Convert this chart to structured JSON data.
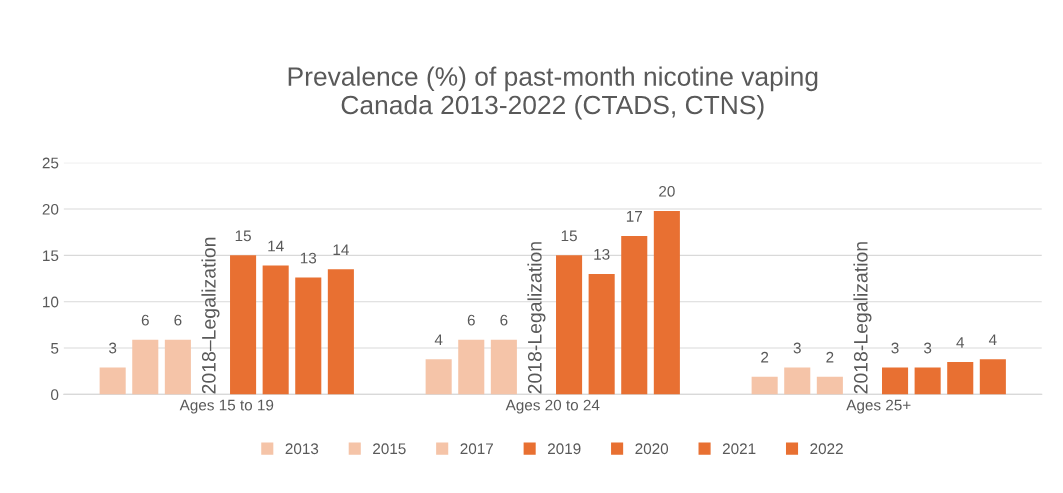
{
  "chart_data": {
    "type": "bar",
    "title": "Prevalence (%) of past-month nicotine vaping\nCanada 2013-2022 (CTADS, CTNS)",
    "categories": [
      "Ages 15 to 19",
      "Ages 20 to 24",
      "Ages 25+"
    ],
    "series": [
      {
        "name": "2013",
        "color": "#f5c4a8",
        "values": [
          2.9,
          3.8,
          1.9
        ],
        "value_labels": [
          "3",
          "4",
          "2"
        ]
      },
      {
        "name": "2015",
        "color": "#f5c4a8",
        "values": [
          5.9,
          5.9,
          2.9
        ],
        "value_labels": [
          "6",
          "6",
          "3"
        ]
      },
      {
        "name": "2017",
        "color": "#f5c4a8",
        "values": [
          5.9,
          5.9,
          1.9
        ],
        "value_labels": [
          "6",
          "6",
          "2"
        ]
      },
      {
        "name": "2019",
        "color": "#e87032",
        "values": [
          15.0,
          15.0,
          2.9
        ],
        "value_labels": [
          "15",
          "15",
          "3"
        ]
      },
      {
        "name": "2020",
        "color": "#e87032",
        "values": [
          13.9,
          13.0,
          2.9
        ],
        "value_labels": [
          "14",
          "13",
          "3"
        ]
      },
      {
        "name": "2021",
        "color": "#e87032",
        "values": [
          12.6,
          17.1,
          3.5
        ],
        "value_labels": [
          "13",
          "17",
          "4"
        ]
      },
      {
        "name": "2022",
        "color": "#e87032",
        "values": [
          13.5,
          19.8,
          3.8
        ],
        "value_labels": [
          "14",
          "20",
          "4"
        ]
      }
    ],
    "annotations": [
      {
        "text": "2018–Legalization",
        "x": "Ages 15 to 19",
        "y": 0
      },
      {
        "text": "2018-Legalization",
        "x": "Ages 20 to 24",
        "y": 0
      },
      {
        "text": "2018-Legalization",
        "x": "Ages 25+",
        "y": 0
      }
    ],
    "ylim": [
      0,
      25
    ],
    "yticks": [
      0,
      5,
      10,
      15,
      20,
      25
    ],
    "grid": "y",
    "legend": "bottom"
  }
}
